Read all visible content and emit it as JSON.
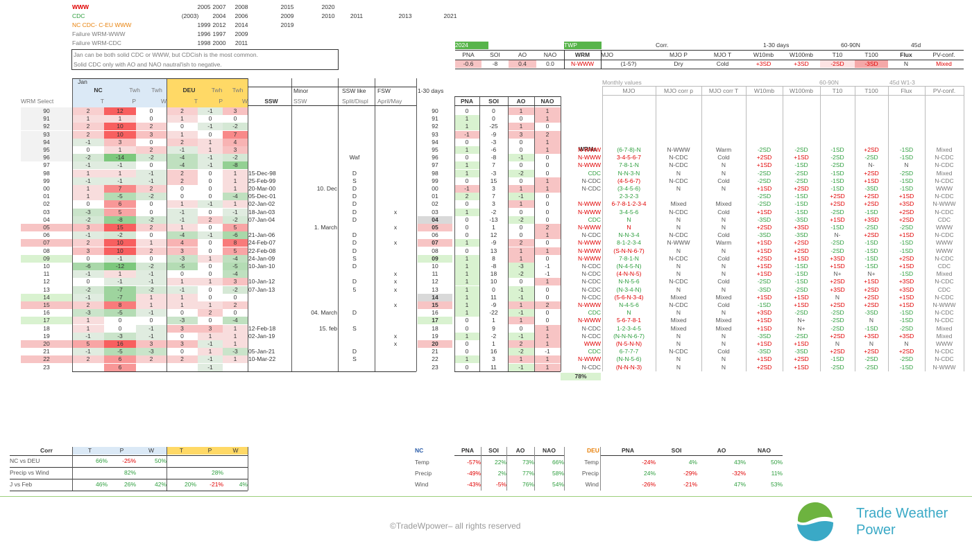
{
  "legend": {
    "rows": [
      {
        "label": "WWW",
        "years": [
          "2005",
          "2007",
          "2008",
          "2015",
          "2020"
        ]
      },
      {
        "label": "CDC",
        "years": [
          "(2003)",
          "2004",
          "2006",
          "2009",
          "2010",
          "2011",
          "2013",
          "2021"
        ]
      },
      {
        "label": "NC CDC- C-EU WWW",
        "years": [
          "1999",
          "2012",
          "2014",
          "2019"
        ]
      },
      {
        "label": "Failure WRM-WWW",
        "years": [
          "1996",
          "1997",
          "2009"
        ]
      },
      {
        "label": "Failure WRM-CDC",
        "years": [
          "1998",
          "2000",
          "2011"
        ]
      }
    ],
    "note1": "Jan can be both solid CDC or WWW, but CDCish is the most common.",
    "note2": "Solid CDC only with AO and NAO nautral'ish to negative."
  },
  "current": {
    "year": "2024",
    "twp": "TWP",
    "headers": [
      "PNA",
      "SOI",
      "AO",
      "NAO",
      "WRM",
      "MJO",
      "MJO P",
      "MJO T",
      "W10mb",
      "W100mb",
      "T10",
      "T100",
      "Flux",
      "PV-conf."
    ],
    "groups": {
      "corr": "Corr.",
      "days": "1-30 days",
      "lat": "60-90N",
      "d45": "45d"
    },
    "values": [
      "-0.6",
      "-8",
      "0.4",
      "0.0",
      "N-WWW",
      "(1-5?)",
      "Dry",
      "Cold",
      "+3SD",
      "+3SD",
      "-2SD",
      "-3SD",
      "N",
      "Mixed"
    ]
  },
  "left_header": {
    "jan": "Jan",
    "nc": "NC",
    "twh1": "Twh",
    "twh2": "Twh",
    "deu": "DEU",
    "twh3": "Twh",
    "twh4": "Twh",
    "t": "T",
    "p": "P",
    "w": "W",
    "wrm_select": "WRM Select",
    "ssw": "SSW",
    "minor": "Minor",
    "minor_ssw": "SSW",
    "ssw_like": "SSW like",
    "split": "Split/Displ",
    "fsw": "FSW",
    "april": "April/May",
    "days": "1-30 days"
  },
  "mid_header": [
    "PNA",
    "SOI",
    "AO",
    "NAO"
  ],
  "right_header": {
    "monthly": "Monthly values",
    "lat": "60-90N",
    "w13": "45d W1-3",
    "cols": [
      "MJO",
      "MJO corr p",
      "MJO corr T",
      "W10mb",
      "W100mb",
      "T10",
      "T100",
      "Flux",
      "PV-conf."
    ],
    "wrms": "WRMs"
  },
  "years": [
    "90",
    "91",
    "92",
    "93",
    "94",
    "95",
    "96",
    "97",
    "98",
    "99",
    "00",
    "01",
    "02",
    "03",
    "04",
    "05",
    "06",
    "07",
    "08",
    "09",
    "10",
    "11",
    "12",
    "13",
    "14",
    "15",
    "16",
    "17",
    "18",
    "19",
    "20",
    "21",
    "22",
    "23"
  ],
  "nc": [
    [
      "2",
      "12",
      "0"
    ],
    [
      "1",
      "1",
      "0"
    ],
    [
      "2",
      "10",
      "2"
    ],
    [
      "2",
      "10",
      "3"
    ],
    [
      "-1",
      "3",
      "0"
    ],
    [
      "0",
      "1",
      "2"
    ],
    [
      "-2",
      "-14",
      "-2"
    ],
    [
      "-1",
      "-1",
      "0"
    ],
    [
      "1",
      "1",
      "-1"
    ],
    [
      "-1",
      "-1",
      "-1"
    ],
    [
      "1",
      "7",
      "2"
    ],
    [
      "1",
      "-5",
      "-2"
    ],
    [
      "0",
      "6",
      "0"
    ],
    [
      "-3",
      "5",
      "0"
    ],
    [
      "-2",
      "-8",
      "-2"
    ],
    [
      "3",
      "15",
      "2"
    ],
    [
      "-1",
      "-2",
      "0"
    ],
    [
      "2",
      "10",
      "1"
    ],
    [
      "3",
      "10",
      "2"
    ],
    [
      "0",
      "-1",
      "0"
    ],
    [
      "-6",
      "-12",
      "-2"
    ],
    [
      "-1",
      "1",
      "-1"
    ],
    [
      "0",
      "-1",
      "-1"
    ],
    [
      "-2",
      "-7",
      "-2"
    ],
    [
      "-1",
      "-7",
      "1"
    ],
    [
      "2",
      "8",
      "1"
    ],
    [
      "-3",
      "-5",
      "-1"
    ],
    [
      "1",
      "0",
      "0"
    ],
    [
      "1",
      "0",
      "-1"
    ],
    [
      "-1",
      "-3",
      "-1"
    ],
    [
      "5",
      "16",
      "3"
    ],
    [
      "-1",
      "-5",
      "-3"
    ],
    [
      "2",
      "6",
      "2"
    ],
    [
      "",
      "6",
      ""
    ]
  ],
  "deu": [
    [
      "2",
      "-1",
      "3"
    ],
    [
      "1",
      "0",
      "0"
    ],
    [
      "0",
      "-1",
      "-2"
    ],
    [
      "1",
      "0",
      "7"
    ],
    [
      "2",
      "1",
      "4"
    ],
    [
      "-1",
      "1",
      "3"
    ],
    [
      "-4",
      "-1",
      "-2"
    ],
    [
      "-4",
      "-1",
      "-8"
    ],
    [
      "2",
      "0",
      "1"
    ],
    [
      "2",
      "0",
      "1"
    ],
    [
      "0",
      "0",
      "1"
    ],
    [
      "0",
      "0",
      "-4"
    ],
    [
      "1",
      "-1",
      "1"
    ],
    [
      "-1",
      "0",
      "-1"
    ],
    [
      "-1",
      "2",
      "-2"
    ],
    [
      "1",
      "0",
      "5"
    ],
    [
      "-4",
      "-1",
      "-6"
    ],
    [
      "4",
      "0",
      "8"
    ],
    [
      "3",
      "0",
      "5"
    ],
    [
      "-3",
      "1",
      "-4"
    ],
    [
      "-5",
      "0",
      "-5"
    ],
    [
      "0",
      "0",
      "-4"
    ],
    [
      "1",
      "1",
      "3"
    ],
    [
      "-1",
      "0",
      "-2"
    ],
    [
      "1",
      "0",
      "0"
    ],
    [
      "1",
      "1",
      "2"
    ],
    [
      "0",
      "2",
      "0"
    ],
    [
      "-3",
      "0",
      "-4"
    ],
    [
      "3",
      "3",
      "1"
    ],
    [
      "0",
      "1",
      "1"
    ],
    [
      "3",
      "-1",
      "1"
    ],
    [
      "0",
      "1",
      "-3"
    ],
    [
      "2",
      "-1",
      "1"
    ],
    [
      "",
      "-1",
      ""
    ]
  ],
  "ssw": [
    "",
    "",
    "",
    "",
    "",
    "",
    "",
    "",
    "15-Dec-98",
    "25-Feb-99",
    "20-Mar-00",
    "05-Dec-01",
    "02-Jan-02",
    "18-Jan-03",
    "07-Jan-04",
    "",
    "21-Jan-06",
    "24-Feb-07",
    "22-Feb-08",
    "24-Jan-09",
    "10-Jan-10",
    "",
    "10-Jan-12",
    "07-Jan-13",
    "",
    "",
    "",
    "",
    "12-Feb-18",
    "02-Jan-19",
    "",
    "05-Jan-21",
    "10-Mar-22",
    ""
  ],
  "minor": [
    "",
    "",
    "",
    "",
    "",
    "",
    "",
    "",
    "",
    "",
    "10. Dec",
    "",
    "",
    "",
    "",
    "1. March",
    "",
    "",
    "",
    "",
    "",
    "",
    "",
    "",
    "",
    "",
    "04. March",
    "",
    "15. feb",
    "",
    "",
    "",
    "",
    ""
  ],
  "sswlike": [
    "",
    "",
    "",
    "",
    "",
    "",
    "Waf",
    "",
    "D",
    "S",
    "D",
    "D",
    "D",
    "D",
    "D",
    "",
    "D",
    "D",
    "D",
    "S",
    "D",
    "",
    "D",
    "5",
    "",
    "",
    "D",
    "",
    "S",
    "",
    "",
    "D",
    "S",
    ""
  ],
  "fsw": [
    "",
    "",
    "",
    "",
    "",
    "",
    "",
    "",
    "",
    "",
    "",
    "",
    "",
    "x",
    "",
    "x",
    "",
    "x",
    "",
    "",
    "",
    "x",
    "x",
    "x",
    "",
    "x",
    "",
    "",
    "",
    "x",
    "x",
    "",
    "",
    ""
  ],
  "mid": [
    [
      "0",
      "0",
      "1",
      "1"
    ],
    [
      "1",
      "0",
      "0",
      "1"
    ],
    [
      "1",
      "-25",
      "1",
      "0"
    ],
    [
      "-1",
      "-9",
      "3",
      "2"
    ],
    [
      "0",
      "-3",
      "0",
      "1"
    ],
    [
      "1",
      "-6",
      "0",
      "1"
    ],
    [
      "0",
      "-8",
      "-1",
      "0"
    ],
    [
      "1",
      "7",
      "0",
      "0"
    ],
    [
      "1",
      "-3",
      "-2",
      "0"
    ],
    [
      "0",
      "15",
      "0",
      "1"
    ],
    [
      "-1",
      "3",
      "1",
      "1"
    ],
    [
      "2",
      "7",
      "-1",
      "0"
    ],
    [
      "0",
      "3",
      "1",
      "0"
    ],
    [
      "1",
      "-2",
      "0",
      "0"
    ],
    [
      "0",
      "-13",
      "-2",
      "0"
    ],
    [
      "0",
      "1",
      "0",
      "2"
    ],
    [
      "0",
      "12",
      "0",
      "1"
    ],
    [
      "1",
      "-9",
      "2",
      "0"
    ],
    [
      "0",
      "13",
      "1",
      "1"
    ],
    [
      "1",
      "8",
      "1",
      "0"
    ],
    [
      "1",
      "-8",
      "-3",
      "-1"
    ],
    [
      "1",
      "18",
      "-2",
      "-1"
    ],
    [
      "1",
      "10",
      "0",
      "1"
    ],
    [
      "1",
      "0",
      "-1",
      "0"
    ],
    [
      "1",
      "11",
      "-1",
      "0"
    ],
    [
      "1",
      "-9",
      "1",
      "2"
    ],
    [
      "1",
      "-22",
      "-1",
      "0"
    ],
    [
      "0",
      "1",
      "1",
      "0"
    ],
    [
      "0",
      "9",
      "0",
      "1"
    ],
    [
      "1",
      "-2",
      "-1",
      "1"
    ],
    [
      "0",
      "1",
      "2",
      "1"
    ],
    [
      "0",
      "16",
      "-2",
      "-1"
    ],
    [
      "1",
      "3",
      "1",
      "1"
    ],
    [
      "0",
      "11",
      "-1",
      "1"
    ]
  ],
  "wrm": [
    "",
    "",
    "",
    "",
    "",
    "N-WWW",
    "N-WWW",
    "N-WWW",
    "CDC",
    "N-CDC",
    "N-CDC",
    "",
    "N-WWW",
    "N-WWW",
    "CDC",
    "N-WWW",
    "N-CDC",
    "N-WWW",
    "N-WWW",
    "N-WWW",
    "N-CDC",
    "N-CDC",
    "N-CDC",
    "N-CDC",
    "N-CDC",
    "N-WWW",
    "CDC",
    "N-WWW",
    "N-CDC",
    "N-CDC",
    "WWW",
    "CDC",
    "N-WWW",
    "N-CDC"
  ],
  "mjo": [
    "",
    "",
    "",
    "",
    "",
    "(6-7-8)-N",
    "3-4-5-6-7",
    "7-8-1-N",
    "N-N-3-N",
    "(4-5-6-7)",
    "(3-4-5-6)",
    "2-3-2-3",
    "6-7-8-1-2-3-4",
    "3-4-5-6",
    "N",
    "N",
    "N-N-3-4",
    "8-1-2-3-4",
    "(S-N-N-6-7)",
    "7-8-1-N",
    "(N-4-5-N)",
    "(4-N-N-5)",
    "N-N-5-6",
    "(N-3-4-N)",
    "(5-6-N-3-4)",
    "N-4-5-6",
    "N",
    "5-6-7-8-1",
    "1-2-3-4-5",
    "(N-N-N-6-7)",
    "(N-5-N-N)",
    "6-7-7-7",
    "(N-N-5-6)",
    "(N-N-N-3)"
  ],
  "mjop": [
    "",
    "",
    "",
    "",
    "",
    "N-WWW",
    "N-CDC",
    "N-CDC",
    "N",
    "N-CDC",
    "N",
    "",
    "Mixed",
    "N-CDC",
    "N",
    "N",
    "N-CDC",
    "N-WWW",
    "N",
    "N-CDC",
    "N",
    "N",
    "N-CDC",
    "N",
    "Mixed",
    "N-CDC",
    "N",
    "Mixed",
    "Mixed",
    "N",
    "N",
    "N-CDC",
    "N",
    "N"
  ],
  "mjot": [
    "",
    "",
    "",
    "",
    "",
    "Warm",
    "Cold",
    "N",
    "N",
    "Cold",
    "N",
    "",
    "Mixed",
    "Cold",
    "N",
    "N",
    "Cold",
    "Warm",
    "N",
    "Cold",
    "N",
    "N",
    "Cold",
    "N",
    "Mixed",
    "Cold",
    "N",
    "Mixed",
    "Mixed",
    "N",
    "N",
    "Cold",
    "N",
    "N"
  ],
  "w10": [
    "",
    "",
    "",
    "",
    "",
    "-2SD",
    "+2SD",
    "+1SD",
    "-2SD",
    "-2SD",
    "+1SD",
    "-2SD",
    "-2SD",
    "+1SD",
    "-3SD",
    "+2SD",
    "-3SD",
    "+1SD",
    "+1SD",
    "+2SD",
    "+1SD",
    "+1SD",
    "-2SD",
    "-3SD",
    "+1SD",
    "-1SD",
    "+3SD",
    "+1SD",
    "+1SD",
    "-3SD",
    "+1SD",
    "-3SD",
    "+1SD",
    "+2SD"
  ],
  "w100": [
    "",
    "",
    "",
    "",
    "",
    "-2SD",
    "+1SD",
    "-1SD",
    "-2SD",
    "-2SD",
    "+2SD",
    "-1SD",
    "-1SD",
    "-1SD",
    "-3SD",
    "+3SD",
    "-3SD",
    "+2SD",
    "+2SD",
    "+1SD",
    "-1SD",
    "-1SD",
    "-1SD",
    "-2SD",
    "+1SD",
    "+1SD",
    "-2SD",
    "N+",
    "N+",
    "-2SD",
    "+1SD",
    "-3SD",
    "+2SD",
    "+1SD"
  ],
  "t10": [
    "",
    "",
    "",
    "",
    "",
    "-1SD",
    "-2SD",
    "-2SD",
    "-1SD",
    "-1SD",
    "-1SD",
    "+2SD",
    "+2SD",
    "-2SD",
    "+1SD",
    "-1SD",
    "N-",
    "-2SD",
    "-2SD",
    "+3SD",
    "+1SD",
    "N+",
    "+2SD",
    "+3SD",
    "N",
    "+2SD",
    "-2SD",
    "-2SD",
    "-2SD",
    "+2SD",
    "N",
    "+2SD",
    "-1SD",
    "-2SD"
  ],
  "t100": [
    "",
    "",
    "",
    "",
    "",
    "+2SD",
    "-2SD",
    "N-",
    "+2SD",
    "+1SD",
    "-3SD",
    "+2SD",
    "+2SD",
    "-1SD",
    "+3SD",
    "-2SD",
    "+2SD",
    "-1SD",
    "-1SD",
    "-1SD",
    "-1SD",
    "N+",
    "+1SD",
    "+2SD",
    "+2SD",
    "+2SD",
    "-3SD",
    "N",
    "-1SD",
    "+3SD",
    "N",
    "+2SD",
    "-2SD",
    "-2SD"
  ],
  "flux": [
    "",
    "",
    "",
    "",
    "",
    "-1SD",
    "-1SD",
    "N",
    "-2SD",
    "-1SD",
    "-1SD",
    "+1SD",
    "+3SD",
    "+2SD",
    "+2SD",
    "-2SD",
    "+1SD",
    "-1SD",
    "-1SD",
    "+2SD",
    "+1SD",
    "-1SD",
    "+3SD",
    "+3SD",
    "+1SD",
    "+1SD",
    "-1SD",
    "-1SD",
    "-2SD",
    "+3SD",
    "N",
    "+2SD",
    "-2SD",
    "-1SD"
  ],
  "pv": [
    "",
    "",
    "",
    "",
    "",
    "Mixed",
    "N-CDC",
    "N-CDC",
    "Mixed",
    "N-CDC",
    "WWW",
    "N-CDC",
    "N-WWW",
    "N-CDC",
    "CDC",
    "WWW",
    "N-CDC",
    "WWW",
    "WWW",
    "N-CDC",
    "CDC",
    "Mixed",
    "N-CDC",
    "CDC",
    "N-CDC",
    "N-WWW",
    "N-CDC",
    "N-CDC",
    "Mixed",
    "Mixed",
    "WWW",
    "N-CDC",
    "N-CDC",
    "N-WWW"
  ],
  "pct78": "78%",
  "corr": {
    "title": "Corr",
    "hdr": [
      "T",
      "P",
      "W",
      "T",
      "P",
      "W"
    ],
    "rows": [
      {
        "label": "NC vs DEU",
        "vals": [
          "66%",
          "-25%",
          "50%",
          "",
          "",
          ""
        ]
      },
      {
        "label": "Precip vs Wind",
        "vals": [
          "",
          "82%",
          "",
          "",
          "28%",
          ""
        ]
      },
      {
        "label": "J vs Feb",
        "vals": [
          "46%",
          "26%",
          "42%",
          "20%",
          "-21%",
          "4%"
        ]
      }
    ]
  },
  "ncdeu": {
    "nc": "NC",
    "deu": "DEU",
    "hdr": [
      "PNA",
      "SOI",
      "AO",
      "NAO"
    ],
    "rows": [
      {
        "label": "Temp",
        "nc": [
          "-57%",
          "22%",
          "73%",
          "66%"
        ],
        "deu": [
          "-24%",
          "4%",
          "43%",
          "50%"
        ]
      },
      {
        "label": "Precip",
        "nc": [
          "-49%",
          "2%",
          "77%",
          "58%"
        ],
        "deu": [
          "24%",
          "-29%",
          "-32%",
          "11%"
        ]
      },
      {
        "label": "Wind",
        "nc": [
          "-43%",
          "-5%",
          "76%",
          "54%"
        ],
        "deu": [
          "-26%",
          "-21%",
          "47%",
          "53%"
        ]
      }
    ]
  },
  "footer": {
    "copyright": "©TradeWpower– all rights reserved",
    "brand1": "Trade Weather",
    "brand2": "Power"
  },
  "colors": {
    "red": "#e00000",
    "green": "#2e9e3e",
    "orange": "#e8820c",
    "brand": "#3aa9c6",
    "deu_head": "#ffd966",
    "nc_head": "#dbe9f6"
  }
}
